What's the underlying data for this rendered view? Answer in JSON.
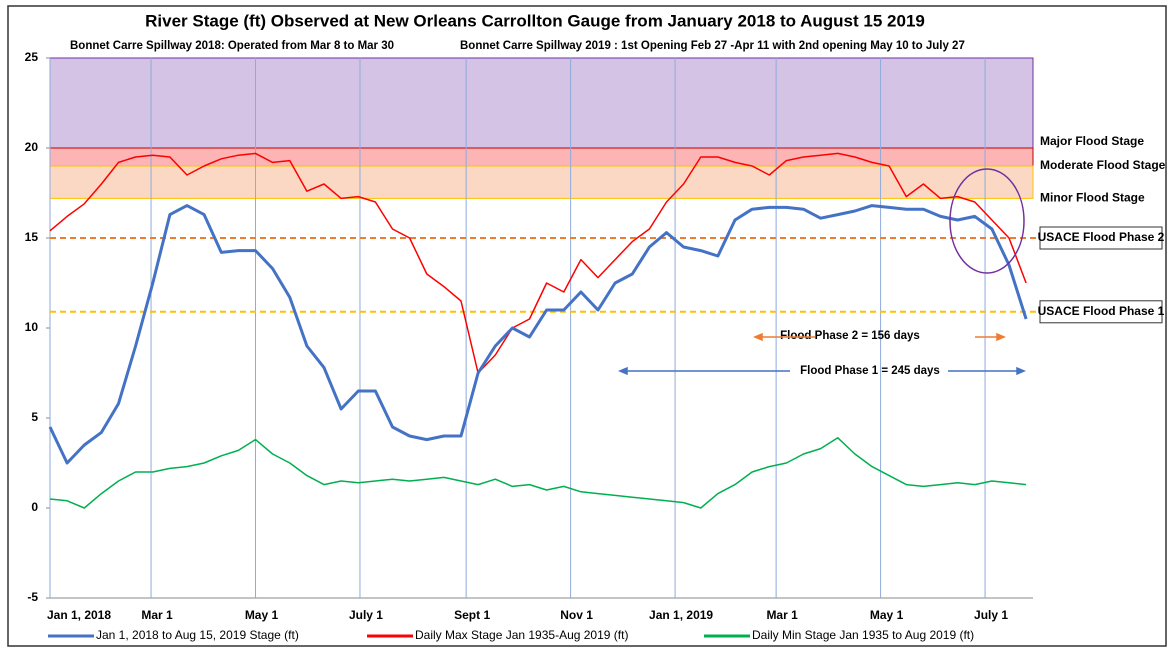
{
  "chart_data": {
    "type": "line",
    "title": "River Stage (ft) Observed at New Orleans Carrollton Gauge from January 2018 to August 15 2019",
    "subtitles": [
      "Bonnet Carre Spillway 2018:  Operated from Mar 8 to Mar 30",
      "Bonnet Carre Spillway 2019 : 1st Opening Feb 27 -Apr 11  with  2nd opening May 10 to July 27"
    ],
    "x": [
      0,
      10,
      20,
      30,
      40,
      50,
      60,
      70,
      80,
      90,
      100,
      110,
      120,
      130,
      140,
      150,
      160,
      170,
      180,
      190,
      200,
      210,
      220,
      230,
      240,
      250,
      260,
      270,
      280,
      290,
      300,
      310,
      320,
      330,
      340,
      350,
      360,
      370,
      380,
      390,
      400,
      410,
      420,
      430,
      440,
      450,
      460,
      470,
      480,
      490,
      500,
      510,
      520,
      530,
      540,
      550,
      560,
      570
    ],
    "series": [
      {
        "name": "Jan 1, 2018 to Aug 15, 2019 Stage (ft)",
        "color": "#4472c4",
        "width": 3,
        "values": [
          4.5,
          2.5,
          3.5,
          4.2,
          5.8,
          9,
          12.5,
          16.3,
          16.8,
          16.3,
          14.2,
          14.3,
          14.3,
          13.3,
          11.7,
          9,
          7.8,
          5.5,
          6.5,
          6.5,
          4.5,
          4,
          3.8,
          4,
          4,
          7.5,
          9,
          10,
          9.5,
          11,
          11,
          12,
          11,
          12.5,
          13,
          14.5,
          15.3,
          14.5,
          14.3,
          14,
          16,
          16.6,
          16.7,
          16.7,
          16.6,
          16.1,
          16.3,
          16.5,
          16.8,
          16.7,
          16.6,
          16.6,
          16.2,
          16,
          16.2,
          15.5,
          13.5,
          10.5
        ]
      },
      {
        "name": "Daily Max Stage Jan 1935-Aug 2019 (ft)",
        "color": "#ff0000",
        "width": 1.5,
        "values": [
          15.4,
          16.2,
          16.9,
          18,
          19.2,
          19.5,
          19.6,
          19.5,
          18.5,
          19,
          19.4,
          19.6,
          19.7,
          19.2,
          19.3,
          17.6,
          18,
          17.2,
          17.3,
          17,
          15.5,
          15,
          13,
          12.3,
          11.5,
          7.5,
          8.5,
          10,
          10.5,
          12.5,
          12,
          13.8,
          12.8,
          13.8,
          14.8,
          15.5,
          17,
          18,
          19.5,
          19.5,
          19.2,
          19,
          18.5,
          19.3,
          19.5,
          19.6,
          19.7,
          19.5,
          19.2,
          19,
          17.3,
          18,
          17.2,
          17.3,
          17,
          16,
          15,
          12.5
        ]
      },
      {
        "name": "Daily Min Stage Jan 1935 to Aug 2019 (ft)",
        "color": "#00b050",
        "width": 1.5,
        "values": [
          0.5,
          0.4,
          0,
          0.8,
          1.5,
          2,
          2,
          2.2,
          2.3,
          2.5,
          2.9,
          3.2,
          3.8,
          3,
          2.5,
          1.8,
          1.3,
          1.5,
          1.4,
          1.5,
          1.6,
          1.5,
          1.6,
          1.7,
          1.5,
          1.3,
          1.6,
          1.2,
          1.3,
          1,
          1.2,
          0.9,
          0.8,
          0.7,
          0.6,
          0.5,
          0.4,
          0.3,
          0,
          0.8,
          1.3,
          2,
          2.3,
          2.5,
          3,
          3.3,
          3.9,
          3,
          2.3,
          1.8,
          1.3,
          1.2,
          1.3,
          1.4,
          1.3,
          1.5,
          1.4,
          1.3
        ]
      }
    ],
    "xlim": [
      0,
      574
    ],
    "xticks": [
      {
        "value": 0,
        "label": "Jan 1, 2018"
      },
      {
        "value": 59,
        "label": "Mar 1"
      },
      {
        "value": 120,
        "label": "May 1"
      },
      {
        "value": 181,
        "label": "July 1"
      },
      {
        "value": 243,
        "label": "Sept 1"
      },
      {
        "value": 304,
        "label": "Nov 1"
      },
      {
        "value": 365,
        "label": "Jan 1, 2019"
      },
      {
        "value": 424,
        "label": "Mar 1"
      },
      {
        "value": 485,
        "label": "May 1"
      },
      {
        "value": 546,
        "label": "July 1"
      }
    ],
    "ylim": [
      -5,
      25
    ],
    "yticks": [
      -5,
      0,
      5,
      10,
      15,
      20,
      25
    ],
    "bands": [
      {
        "label": "Major Flood Stage",
        "from": 20,
        "to": 25,
        "color": "#d5c3e6"
      },
      {
        "label": "Moderate Flood Stage",
        "from": 19,
        "to": 20,
        "color": "#fcb4b4"
      },
      {
        "label": "Minor Flood Stage",
        "from": 17.2,
        "to": 19,
        "color": "#fbd8c4"
      }
    ],
    "thresholds": [
      {
        "label": "USACE Flood Phase 2",
        "value": 15,
        "color": "#ed7d31"
      },
      {
        "label": "USACE Flood Phase 1",
        "value": 10.9,
        "color": "#ffc000"
      }
    ],
    "annotations": [
      "Flood Phase 2 = 156 days",
      "Flood Phase 1 = 245 days"
    ]
  }
}
